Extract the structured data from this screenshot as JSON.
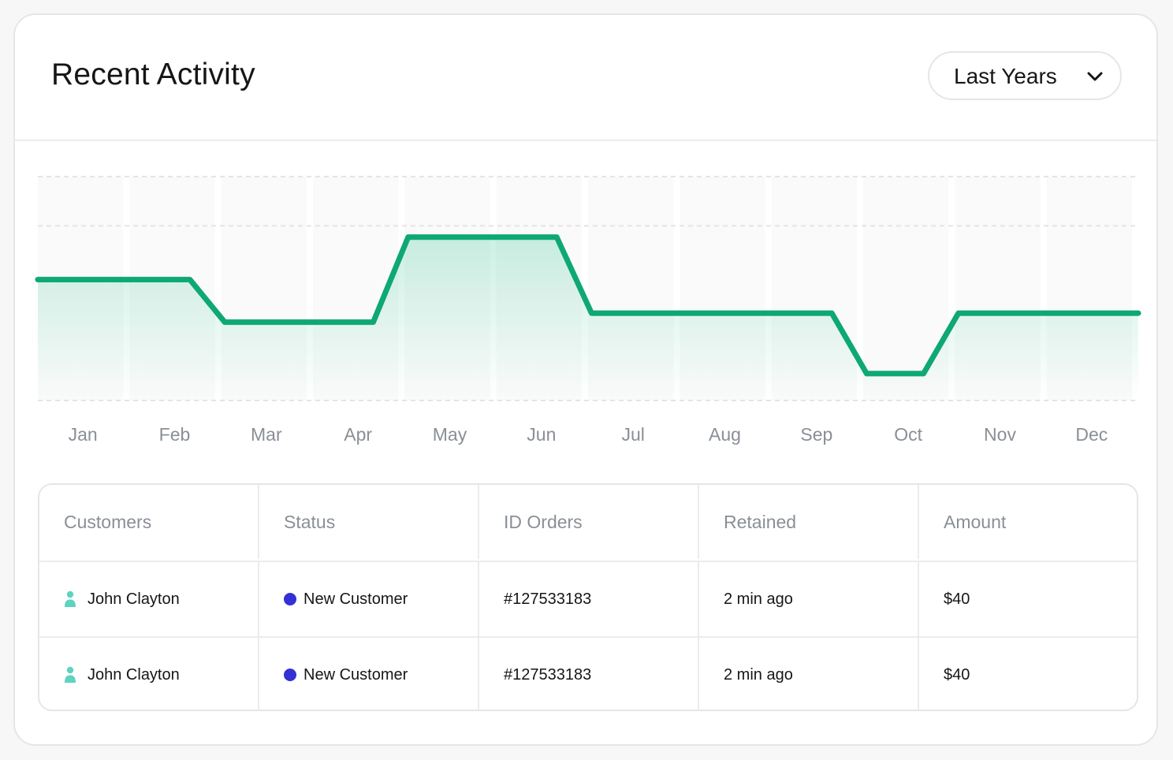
{
  "header": {
    "title": "Recent Activity",
    "range_select": {
      "selected": "Last Years",
      "icon": "chevron-down-icon"
    }
  },
  "chart_data": {
    "type": "area",
    "categories": [
      "Jan",
      "Feb",
      "Mar",
      "Apr",
      "May",
      "Jun",
      "Jul",
      "Aug",
      "Sep",
      "Oct",
      "Nov",
      "Dec"
    ],
    "values": [
      0.54,
      0.54,
      0.35,
      0.35,
      0.73,
      0.73,
      0.39,
      0.39,
      0.39,
      0.12,
      0.39,
      0.39
    ],
    "ylim": [
      0,
      1
    ],
    "grid": true,
    "line_color": "#0ea874",
    "fill_color": "#12b981"
  },
  "table": {
    "columns": [
      "Customers",
      "Status",
      "ID Orders",
      "Retained",
      "Amount"
    ],
    "rows": [
      {
        "customer": "John Clayton",
        "status": "New Customer",
        "order_id": "#127533183",
        "retained": "2 min ago",
        "amount": "$40"
      },
      {
        "customer": "John Clayton",
        "status": "New Customer",
        "order_id": "#127533183",
        "retained": "2 min ago",
        "amount": "$40"
      }
    ],
    "customer_icon": "person-icon",
    "customer_icon_color": "#5dd3c0",
    "status_color": "#3131d6"
  }
}
